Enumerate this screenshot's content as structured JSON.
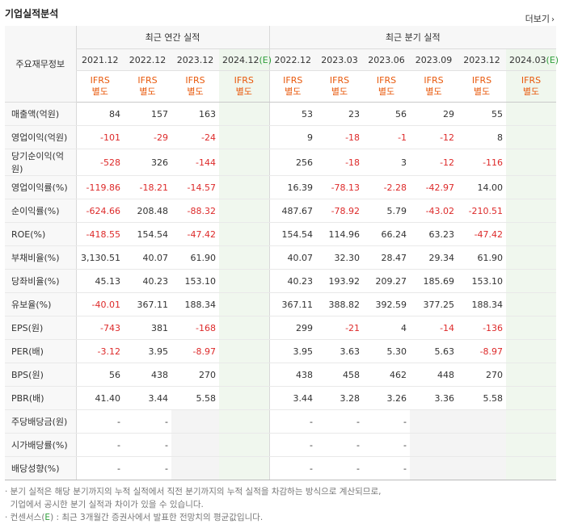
{
  "section_title": "기업실적분석",
  "more_label": "더보기",
  "header": {
    "corner": "주요재무정보",
    "annual_title": "최근 연간 실적",
    "quarter_title": "최근 분기 실적",
    "periods": [
      {
        "label": "2021.12",
        "est": ""
      },
      {
        "label": "2022.12",
        "est": ""
      },
      {
        "label": "2023.12",
        "est": ""
      },
      {
        "label": "2024.12",
        "est": "(E)"
      },
      {
        "label": "2022.12",
        "est": ""
      },
      {
        "label": "2023.03",
        "est": ""
      },
      {
        "label": "2023.06",
        "est": ""
      },
      {
        "label": "2023.09",
        "est": ""
      },
      {
        "label": "2023.12",
        "est": ""
      },
      {
        "label": "2024.03",
        "est": "(E)"
      }
    ],
    "ifrs_line1": "IFRS",
    "ifrs_line2": "별도"
  },
  "rows": [
    {
      "label": "매출액(억원)",
      "values": [
        "84",
        "157",
        "163",
        "",
        "53",
        "23",
        "56",
        "29",
        "55",
        ""
      ]
    },
    {
      "label": "영업이익(억원)",
      "values": [
        "-101",
        "-29",
        "-24",
        "",
        "9",
        "-18",
        "-1",
        "-12",
        "8",
        ""
      ]
    },
    {
      "label": "당기순이익(억원)",
      "values": [
        "-528",
        "326",
        "-144",
        "",
        "256",
        "-18",
        "3",
        "-12",
        "-116",
        ""
      ]
    },
    {
      "label": "영업이익률(%)",
      "values": [
        "-119.86",
        "-18.21",
        "-14.57",
        "",
        "16.39",
        "-78.13",
        "-2.28",
        "-42.97",
        "14.00",
        ""
      ]
    },
    {
      "label": "순이익률(%)",
      "values": [
        "-624.66",
        "208.48",
        "-88.32",
        "",
        "487.67",
        "-78.92",
        "5.79",
        "-43.02",
        "-210.51",
        ""
      ]
    },
    {
      "label": "ROE(%)",
      "values": [
        "-418.55",
        "154.54",
        "-47.42",
        "",
        "154.54",
        "114.96",
        "66.24",
        "63.23",
        "-47.42",
        ""
      ]
    },
    {
      "label": "부채비율(%)",
      "values": [
        "3,130.51",
        "40.07",
        "61.90",
        "",
        "40.07",
        "32.30",
        "28.47",
        "29.34",
        "61.90",
        ""
      ]
    },
    {
      "label": "당좌비율(%)",
      "values": [
        "45.13",
        "40.23",
        "153.10",
        "",
        "40.23",
        "193.92",
        "209.27",
        "185.69",
        "153.10",
        ""
      ]
    },
    {
      "label": "유보율(%)",
      "values": [
        "-40.01",
        "367.11",
        "188.34",
        "",
        "367.11",
        "388.82",
        "392.59",
        "377.25",
        "188.34",
        ""
      ]
    },
    {
      "label": "EPS(원)",
      "values": [
        "-743",
        "381",
        "-168",
        "",
        "299",
        "-21",
        "4",
        "-14",
        "-136",
        ""
      ]
    },
    {
      "label": "PER(배)",
      "values": [
        "-3.12",
        "3.95",
        "-8.97",
        "",
        "3.95",
        "3.63",
        "5.30",
        "5.63",
        "-8.97",
        ""
      ]
    },
    {
      "label": "BPS(원)",
      "values": [
        "56",
        "438",
        "270",
        "",
        "438",
        "458",
        "462",
        "448",
        "270",
        ""
      ]
    },
    {
      "label": "PBR(배)",
      "values": [
        "41.40",
        "3.44",
        "5.58",
        "",
        "3.44",
        "3.28",
        "3.26",
        "3.36",
        "5.58",
        ""
      ]
    },
    {
      "label": "주당배당금(원)",
      "values": [
        "-",
        "-",
        "",
        "",
        "-",
        "-",
        "-",
        "",
        "",
        ""
      ]
    },
    {
      "label": "시가배당률(%)",
      "values": [
        "-",
        "-",
        "",
        "",
        "-",
        "-",
        "-",
        "",
        "",
        ""
      ]
    },
    {
      "label": "배당성향(%)",
      "values": [
        "-",
        "-",
        "",
        "",
        "-",
        "-",
        "-",
        "",
        "",
        ""
      ]
    }
  ],
  "notes": [
    "· 분기 실적은 해당 분기까지의 누적 실적에서 직전 분기까지의 누적 실적을 차감하는 방식으로 계산되므로,",
    "  기업에서 공시한 분기 실적과 차이가 있을 수 있습니다.",
    "· 컨센서스(E) : 최근 3개월간 증권사에서 발표한 전망치의 평균값입니다."
  ],
  "colors": {
    "negative": "#dd2a2a",
    "ifrs": "#e8590c",
    "estimate_bg": "#f0f7ee",
    "estimate_mark": "#2e9e3a"
  }
}
